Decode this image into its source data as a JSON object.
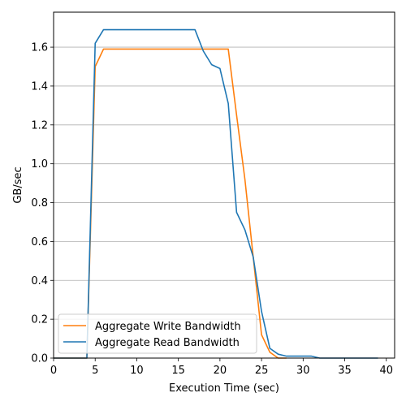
{
  "chart_data": {
    "type": "line",
    "title": "",
    "xlabel": "Execution Time (sec)",
    "ylabel": "GB/sec",
    "xlim": [
      0,
      41
    ],
    "ylim": [
      0,
      1.78
    ],
    "xticks": [
      0,
      5,
      10,
      15,
      20,
      25,
      30,
      35,
      40
    ],
    "xtick_labels": [
      "0",
      "5",
      "10",
      "15",
      "20",
      "25",
      "30",
      "35",
      "40"
    ],
    "yticks": [
      0.0,
      0.2,
      0.4,
      0.6,
      0.8,
      1.0,
      1.2,
      1.4,
      1.6
    ],
    "ytick_labels": [
      "0.0",
      "0.2",
      "0.4",
      "0.6",
      "0.8",
      "1.0",
      "1.2",
      "1.4",
      "1.6"
    ],
    "grid": "horizontal",
    "legend_position": "bottom-left",
    "series": [
      {
        "name": "Aggregate Write Bandwidth",
        "color": "#ff7f0e",
        "x": [
          0,
          4,
          5,
          6,
          7,
          8,
          9,
          10,
          11,
          12,
          13,
          14,
          15,
          16,
          17,
          18,
          19,
          20,
          21,
          22,
          23,
          24,
          25,
          26,
          27,
          28
        ],
        "y": [
          0,
          0,
          1.5,
          1.59,
          1.59,
          1.59,
          1.59,
          1.59,
          1.59,
          1.59,
          1.59,
          1.59,
          1.59,
          1.59,
          1.59,
          1.59,
          1.59,
          1.59,
          1.59,
          1.25,
          0.92,
          0.52,
          0.12,
          0.03,
          0.0,
          0.0
        ]
      },
      {
        "name": "Aggregate Read Bandwidth",
        "color": "#1f77b4",
        "x": [
          0,
          1,
          2,
          3,
          4,
          5,
          6,
          7,
          8,
          9,
          10,
          11,
          12,
          13,
          14,
          15,
          16,
          17,
          18,
          19,
          20,
          21,
          22,
          23,
          24,
          25,
          26,
          27,
          28,
          29,
          30,
          31,
          32,
          33,
          34,
          35,
          36,
          37,
          38,
          39
        ],
        "y": [
          0,
          0,
          0,
          0,
          0,
          1.62,
          1.69,
          1.69,
          1.69,
          1.69,
          1.69,
          1.69,
          1.69,
          1.69,
          1.69,
          1.69,
          1.69,
          1.69,
          1.58,
          1.51,
          1.49,
          1.31,
          0.75,
          0.66,
          0.52,
          0.24,
          0.05,
          0.02,
          0.01,
          0.01,
          0.01,
          0.01,
          0.0,
          0.0,
          0.0,
          0.0,
          0.0,
          0.0,
          0.0,
          0.0
        ]
      }
    ]
  }
}
